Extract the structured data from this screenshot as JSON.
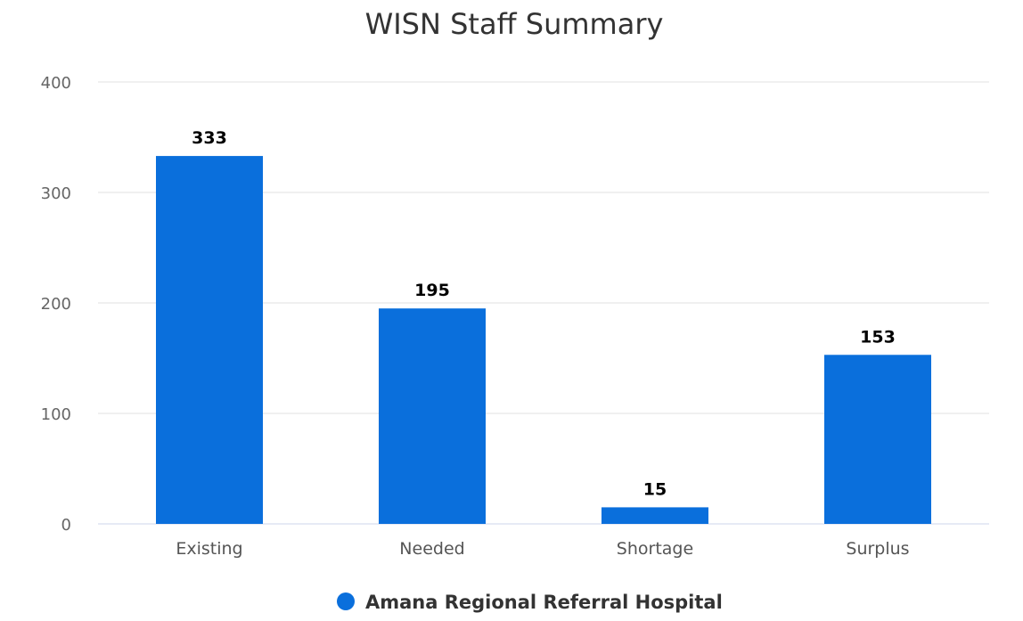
{
  "chart_data": {
    "type": "bar",
    "title": "WISN Staff Summary",
    "categories": [
      "Existing",
      "Needed",
      "Shortage",
      "Surplus"
    ],
    "series": [
      {
        "name": "Amana Regional Referral Hospital",
        "values": [
          333,
          195,
          15,
          153
        ],
        "color": "#0a6fdc"
      }
    ],
    "ylim": [
      0,
      400
    ],
    "yticks": [
      "0",
      "100",
      "200",
      "300",
      "400"
    ],
    "grid": true,
    "legend_position": "bottom-center",
    "data_labels": [
      "333",
      "195",
      "15",
      "153"
    ]
  }
}
